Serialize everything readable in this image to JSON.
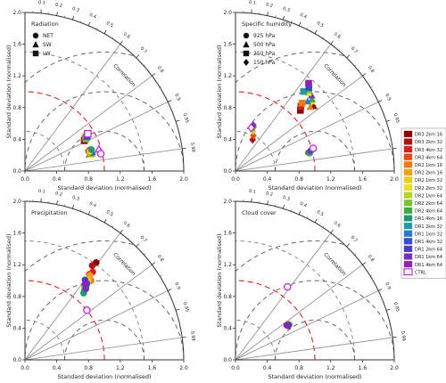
{
  "figure": {
    "ylabel": "Standard deviation (normalised)",
    "xlabel": "Standard deviation (normalised)",
    "corr_label": "Correlation",
    "radial_ticks": [
      "0.0",
      "0.4",
      "0.8",
      "1.2",
      "1.6",
      "2.0"
    ],
    "corr_ticks": [
      "0.1",
      "0.2",
      "0.3",
      "0.4",
      "0.5",
      "0.6",
      "0.7",
      "0.8",
      "0.9",
      "0.95",
      "0.99"
    ],
    "colors": {
      "axis": "#333333",
      "reference_arc": "#e02020",
      "dashed_arc": "#555555",
      "corr_line": "#888888"
    }
  },
  "legend": {
    "items": [
      {
        "label": "DR3 2km 16",
        "color": "#8b0000"
      },
      {
        "label": "DR3 2km 32",
        "color": "#b01010"
      },
      {
        "label": "DR3 4km 32",
        "color": "#d42020"
      },
      {
        "label": "DR3 4km 64",
        "color": "#e84a10"
      },
      {
        "label": "DR2 1km 16",
        "color": "#f07a10"
      },
      {
        "label": "DR2 2km 16",
        "color": "#f5a010"
      },
      {
        "label": "DR2 1km 32",
        "color": "#f0cc10"
      },
      {
        "label": "DR2 2km 32",
        "color": "#e8e020"
      },
      {
        "label": "DR2 1km 64",
        "color": "#b4d62a"
      },
      {
        "label": "DR2 2km 64",
        "color": "#7cc230"
      },
      {
        "label": "DR2 4km 64",
        "color": "#3caa3c"
      },
      {
        "label": "DR1 4km 16",
        "color": "#1a9c70"
      },
      {
        "label": "DR1 2km 32",
        "color": "#1f9aa8"
      },
      {
        "label": "DR1 1km 32",
        "color": "#2a7ad0"
      },
      {
        "label": "DR1 4km 32",
        "color": "#3050d0"
      },
      {
        "label": "DR1 2km 64",
        "color": "#4a3ac8"
      },
      {
        "label": "DR1 1km 64",
        "color": "#7030c0"
      },
      {
        "label": "DR1 4km 64",
        "color": "#9020b8"
      },
      {
        "label": "CTRL",
        "color": "#cc22dd",
        "hollow": true
      }
    ]
  },
  "chart_data": [
    {
      "type": "scatter",
      "title": "Radiation",
      "legend": [
        {
          "label": "NET",
          "marker": "circle"
        },
        {
          "label": "SW",
          "marker": "triangle"
        },
        {
          "label": "LW",
          "marker": "square"
        }
      ],
      "rlim": [
        0,
        2.0
      ],
      "points": [
        {
          "std": 0.84,
          "corr": 0.89,
          "marker": "square",
          "color": "#8b0000"
        },
        {
          "std": 0.86,
          "corr": 0.88,
          "marker": "square",
          "color": "#d42020"
        },
        {
          "std": 0.88,
          "corr": 0.87,
          "marker": "square",
          "color": "#f5a010"
        },
        {
          "std": 0.87,
          "corr": 0.885,
          "marker": "square",
          "color": "#7cc230"
        },
        {
          "std": 0.89,
          "corr": 0.875,
          "marker": "square",
          "color": "#2a7ad0"
        },
        {
          "std": 0.9,
          "corr": 0.87,
          "marker": "square",
          "color": "#4a3ac8"
        },
        {
          "std": 0.92,
          "corr": 0.86,
          "marker": "square",
          "color": "#cc22dd",
          "hollow": true
        },
        {
          "std": 0.84,
          "corr": 0.97,
          "marker": "triangle",
          "color": "#8b0000"
        },
        {
          "std": 0.86,
          "corr": 0.966,
          "marker": "triangle",
          "color": "#f07a10"
        },
        {
          "std": 0.85,
          "corr": 0.972,
          "marker": "triangle",
          "color": "#e8e020"
        },
        {
          "std": 0.87,
          "corr": 0.968,
          "marker": "triangle",
          "color": "#3caa3c"
        },
        {
          "std": 0.88,
          "corr": 0.963,
          "marker": "triangle",
          "color": "#3050d0"
        },
        {
          "std": 0.97,
          "corr": 0.96,
          "marker": "triangle",
          "color": "#cc22dd",
          "hollow": true
        },
        {
          "std": 0.84,
          "corr": 0.955,
          "marker": "circle",
          "color": "#b01010"
        },
        {
          "std": 0.86,
          "corr": 0.95,
          "marker": "circle",
          "color": "#e84a10"
        },
        {
          "std": 0.85,
          "corr": 0.958,
          "marker": "circle",
          "color": "#f0cc10"
        },
        {
          "std": 0.88,
          "corr": 0.952,
          "marker": "circle",
          "color": "#1a9c70"
        },
        {
          "std": 0.98,
          "corr": 0.975,
          "marker": "circle",
          "color": "#cc22dd",
          "hollow": true
        }
      ]
    },
    {
      "type": "scatter",
      "title": "Specific humidity",
      "legend": [
        {
          "label": "925 hPa",
          "marker": "circle"
        },
        {
          "label": "500 hPa",
          "marker": "triangle"
        },
        {
          "label": "250 hPa",
          "marker": "square"
        },
        {
          "label": "150 hPa",
          "marker": "diamond"
        }
      ],
      "rlim": [
        0,
        2.0
      ],
      "points": [
        {
          "std": 0.95,
          "corr": 0.97,
          "marker": "circle",
          "color": "#b01010"
        },
        {
          "std": 0.97,
          "corr": 0.968,
          "marker": "circle",
          "color": "#f5a010"
        },
        {
          "std": 0.96,
          "corr": 0.972,
          "marker": "circle",
          "color": "#3caa3c"
        },
        {
          "std": 0.98,
          "corr": 0.966,
          "marker": "circle",
          "color": "#3050d0"
        },
        {
          "std": 1.02,
          "corr": 0.96,
          "marker": "circle",
          "color": "#cc22dd",
          "hollow": true
        },
        {
          "std": 1.28,
          "corr": 0.77,
          "marker": "triangle",
          "color": "#8b0000"
        },
        {
          "std": 1.24,
          "corr": 0.76,
          "marker": "triangle",
          "color": "#f07a10"
        },
        {
          "std": 1.3,
          "corr": 0.74,
          "marker": "triangle",
          "color": "#e8e020"
        },
        {
          "std": 1.32,
          "corr": 0.73,
          "marker": "triangle",
          "color": "#3caa3c"
        },
        {
          "std": 1.26,
          "corr": 0.72,
          "marker": "triangle",
          "color": "#2a7ad0"
        },
        {
          "std": 1.35,
          "corr": 0.71,
          "marker": "triangle",
          "color": "#7030c0"
        },
        {
          "std": 1.12,
          "corr": 0.73,
          "marker": "square",
          "color": "#8b0000"
        },
        {
          "std": 1.16,
          "corr": 0.71,
          "marker": "square",
          "color": "#d42020"
        },
        {
          "std": 1.2,
          "corr": 0.7,
          "marker": "square",
          "color": "#f07a10"
        },
        {
          "std": 1.35,
          "corr": 0.68,
          "marker": "square",
          "color": "#e8e020"
        },
        {
          "std": 1.38,
          "corr": 0.67,
          "marker": "square",
          "color": "#7cc230"
        },
        {
          "std": 1.32,
          "corr": 0.65,
          "marker": "square",
          "color": "#1f9aa8"
        },
        {
          "std": 1.4,
          "corr": 0.66,
          "marker": "square",
          "color": "#3050d0"
        },
        {
          "std": 1.44,
          "corr": 0.64,
          "marker": "square",
          "color": "#9020b8"
        },
        {
          "std": 0.45,
          "corr": 0.48,
          "marker": "diamond",
          "color": "#b01010"
        },
        {
          "std": 0.5,
          "corr": 0.45,
          "marker": "diamond",
          "color": "#e84a10"
        },
        {
          "std": 0.55,
          "corr": 0.4,
          "marker": "diamond",
          "color": "#b4d62a"
        },
        {
          "std": 0.6,
          "corr": 0.38,
          "marker": "diamond",
          "color": "#3caa3c"
        },
        {
          "std": 0.62,
          "corr": 0.36,
          "marker": "diamond",
          "color": "#7030c0"
        },
        {
          "std": 0.58,
          "corr": 0.34,
          "marker": "diamond",
          "color": "#cc22dd",
          "hollow": true
        }
      ]
    },
    {
      "type": "scatter",
      "title": "Precipitation",
      "legend": [],
      "rlim": [
        0,
        2.0
      ],
      "points": [
        {
          "std": 1.52,
          "corr": 0.59,
          "marker": "circle",
          "color": "#8b0000"
        },
        {
          "std": 1.46,
          "corr": 0.58,
          "marker": "circle",
          "color": "#b01010"
        },
        {
          "std": 1.4,
          "corr": 0.61,
          "marker": "circle",
          "color": "#d42020"
        },
        {
          "std": 1.35,
          "corr": 0.6,
          "marker": "circle",
          "color": "#e84a10"
        },
        {
          "std": 1.3,
          "corr": 0.64,
          "marker": "circle",
          "color": "#f07a10"
        },
        {
          "std": 1.34,
          "corr": 0.61,
          "marker": "circle",
          "color": "#f5a010"
        },
        {
          "std": 1.28,
          "corr": 0.62,
          "marker": "circle",
          "color": "#f0cc10"
        },
        {
          "std": 1.25,
          "corr": 0.63,
          "marker": "circle",
          "color": "#e8e020"
        },
        {
          "std": 1.21,
          "corr": 0.64,
          "marker": "circle",
          "color": "#b4d62a"
        },
        {
          "std": 1.19,
          "corr": 0.63,
          "marker": "circle",
          "color": "#7cc230"
        },
        {
          "std": 1.15,
          "corr": 0.65,
          "marker": "circle",
          "color": "#3caa3c"
        },
        {
          "std": 1.12,
          "corr": 0.66,
          "marker": "circle",
          "color": "#1a9c70"
        },
        {
          "std": 1.2,
          "corr": 0.64,
          "marker": "circle",
          "color": "#1f9aa8"
        },
        {
          "std": 1.23,
          "corr": 0.62,
          "marker": "circle",
          "color": "#2a7ad0"
        },
        {
          "std": 1.24,
          "corr": 0.63,
          "marker": "circle",
          "color": "#3050d0"
        },
        {
          "std": 1.26,
          "corr": 0.6,
          "marker": "circle",
          "color": "#4a3ac8"
        },
        {
          "std": 1.18,
          "corr": 0.65,
          "marker": "circle",
          "color": "#7030c0"
        },
        {
          "std": 1.22,
          "corr": 0.62,
          "marker": "circle",
          "color": "#9020b8"
        },
        {
          "std": 1.0,
          "corr": 0.78,
          "marker": "circle",
          "color": "#cc22dd",
          "hollow": true
        }
      ]
    },
    {
      "type": "scatter",
      "title": "Cloud cover",
      "legend": [],
      "rlim": [
        0,
        2.0
      ],
      "points": [
        {
          "std": 0.79,
          "corr": 0.84,
          "marker": "circle",
          "color": "#8b0000"
        },
        {
          "std": 0.8,
          "corr": 0.83,
          "marker": "circle",
          "color": "#d42020"
        },
        {
          "std": 0.81,
          "corr": 0.835,
          "marker": "circle",
          "color": "#f07a10"
        },
        {
          "std": 0.78,
          "corr": 0.83,
          "marker": "circle",
          "color": "#f0cc10"
        },
        {
          "std": 0.8,
          "corr": 0.825,
          "marker": "circle",
          "color": "#7cc230"
        },
        {
          "std": 0.79,
          "corr": 0.832,
          "marker": "circle",
          "color": "#1a9c70"
        },
        {
          "std": 0.8,
          "corr": 0.838,
          "marker": "circle",
          "color": "#3050d0"
        },
        {
          "std": 0.78,
          "corr": 0.828,
          "marker": "circle",
          "color": "#9020b8"
        },
        {
          "std": 1.13,
          "corr": 0.58,
          "marker": "circle",
          "color": "#cc22dd",
          "hollow": true
        }
      ]
    }
  ]
}
